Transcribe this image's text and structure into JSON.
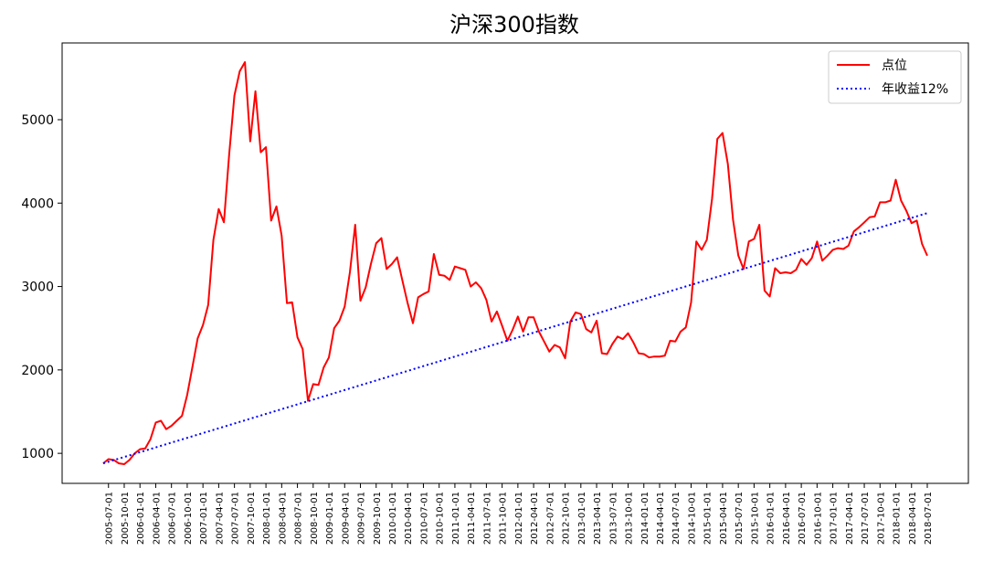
{
  "chart_data": {
    "type": "line",
    "title": "沪深300指数",
    "xlabel": "",
    "ylabel": "",
    "ylim": [
      640,
      5920
    ],
    "yticks": [
      1000,
      2000,
      3000,
      4000,
      5000
    ],
    "grid": false,
    "legend_placement": "top-right",
    "x_tick_labels": [
      "2005-07-01",
      "2005-10-01",
      "2006-01-01",
      "2006-04-01",
      "2006-07-01",
      "2006-10-01",
      "2007-01-01",
      "2007-04-01",
      "2007-07-01",
      "2007-10-01",
      "2008-01-01",
      "2008-04-01",
      "2008-07-01",
      "2008-10-01",
      "2009-01-01",
      "2009-04-01",
      "2009-07-01",
      "2009-10-01",
      "2010-01-01",
      "2010-04-01",
      "2010-07-01",
      "2010-10-01",
      "2011-01-01",
      "2011-04-01",
      "2011-07-01",
      "2011-10-01",
      "2012-01-01",
      "2012-04-01",
      "2012-07-01",
      "2012-10-01",
      "2013-01-01",
      "2013-04-01",
      "2013-07-01",
      "2013-10-01",
      "2014-01-01",
      "2014-04-01",
      "2014-07-01",
      "2014-10-01",
      "2015-01-01",
      "2015-04-01",
      "2015-07-01",
      "2015-10-01",
      "2016-01-01",
      "2016-04-01",
      "2016-07-01",
      "2016-10-01",
      "2017-01-01",
      "2017-04-01",
      "2017-07-01",
      "2017-10-01",
      "2018-01-01",
      "2018-04-01",
      "2018-07-01"
    ],
    "x_start": "2005-06",
    "series": [
      {
        "name": "点位",
        "style": "solid",
        "color": "#ff0000",
        "values": [
          880,
          930,
          920,
          880,
          870,
          920,
          1000,
          1050,
          1060,
          1170,
          1370,
          1390,
          1290,
          1330,
          1390,
          1450,
          1700,
          2040,
          2380,
          2540,
          2780,
          3560,
          3930,
          3770,
          4590,
          5290,
          5580,
          5690,
          4740,
          5340,
          4610,
          4670,
          3790,
          3960,
          3610,
          2800,
          2810,
          2390,
          2250,
          1630,
          1830,
          1820,
          2030,
          2150,
          2500,
          2590,
          2760,
          3170,
          3740,
          2830,
          2990,
          3270,
          3520,
          3580,
          3210,
          3270,
          3350,
          3070,
          2800,
          2560,
          2870,
          2910,
          2940,
          3390,
          3140,
          3130,
          3080,
          3240,
          3220,
          3200,
          3000,
          3050,
          2980,
          2840,
          2580,
          2700,
          2530,
          2350,
          2480,
          2640,
          2460,
          2630,
          2630,
          2460,
          2340,
          2220,
          2300,
          2270,
          2140,
          2580,
          2690,
          2670,
          2490,
          2450,
          2590,
          2200,
          2190,
          2310,
          2400,
          2370,
          2440,
          2330,
          2200,
          2190,
          2150,
          2160,
          2160,
          2170,
          2350,
          2340,
          2460,
          2510,
          2810,
          3540,
          3440,
          3560,
          4050,
          4770,
          4840,
          4470,
          3800,
          3370,
          3210,
          3540,
          3570,
          3740,
          2950,
          2880,
          3220,
          3160,
          3170,
          3160,
          3200,
          3330,
          3260,
          3340,
          3540,
          3310,
          3370,
          3440,
          3460,
          3450,
          3490,
          3660,
          3710,
          3770,
          3830,
          3840,
          4010,
          4010,
          4030,
          4280,
          4030,
          3910,
          3760,
          3790,
          3510,
          3370
        ]
      },
      {
        "name": "年收益12%",
        "style": "dotted",
        "color": "#0000ff",
        "start": 880,
        "end": 3880
      }
    ]
  }
}
